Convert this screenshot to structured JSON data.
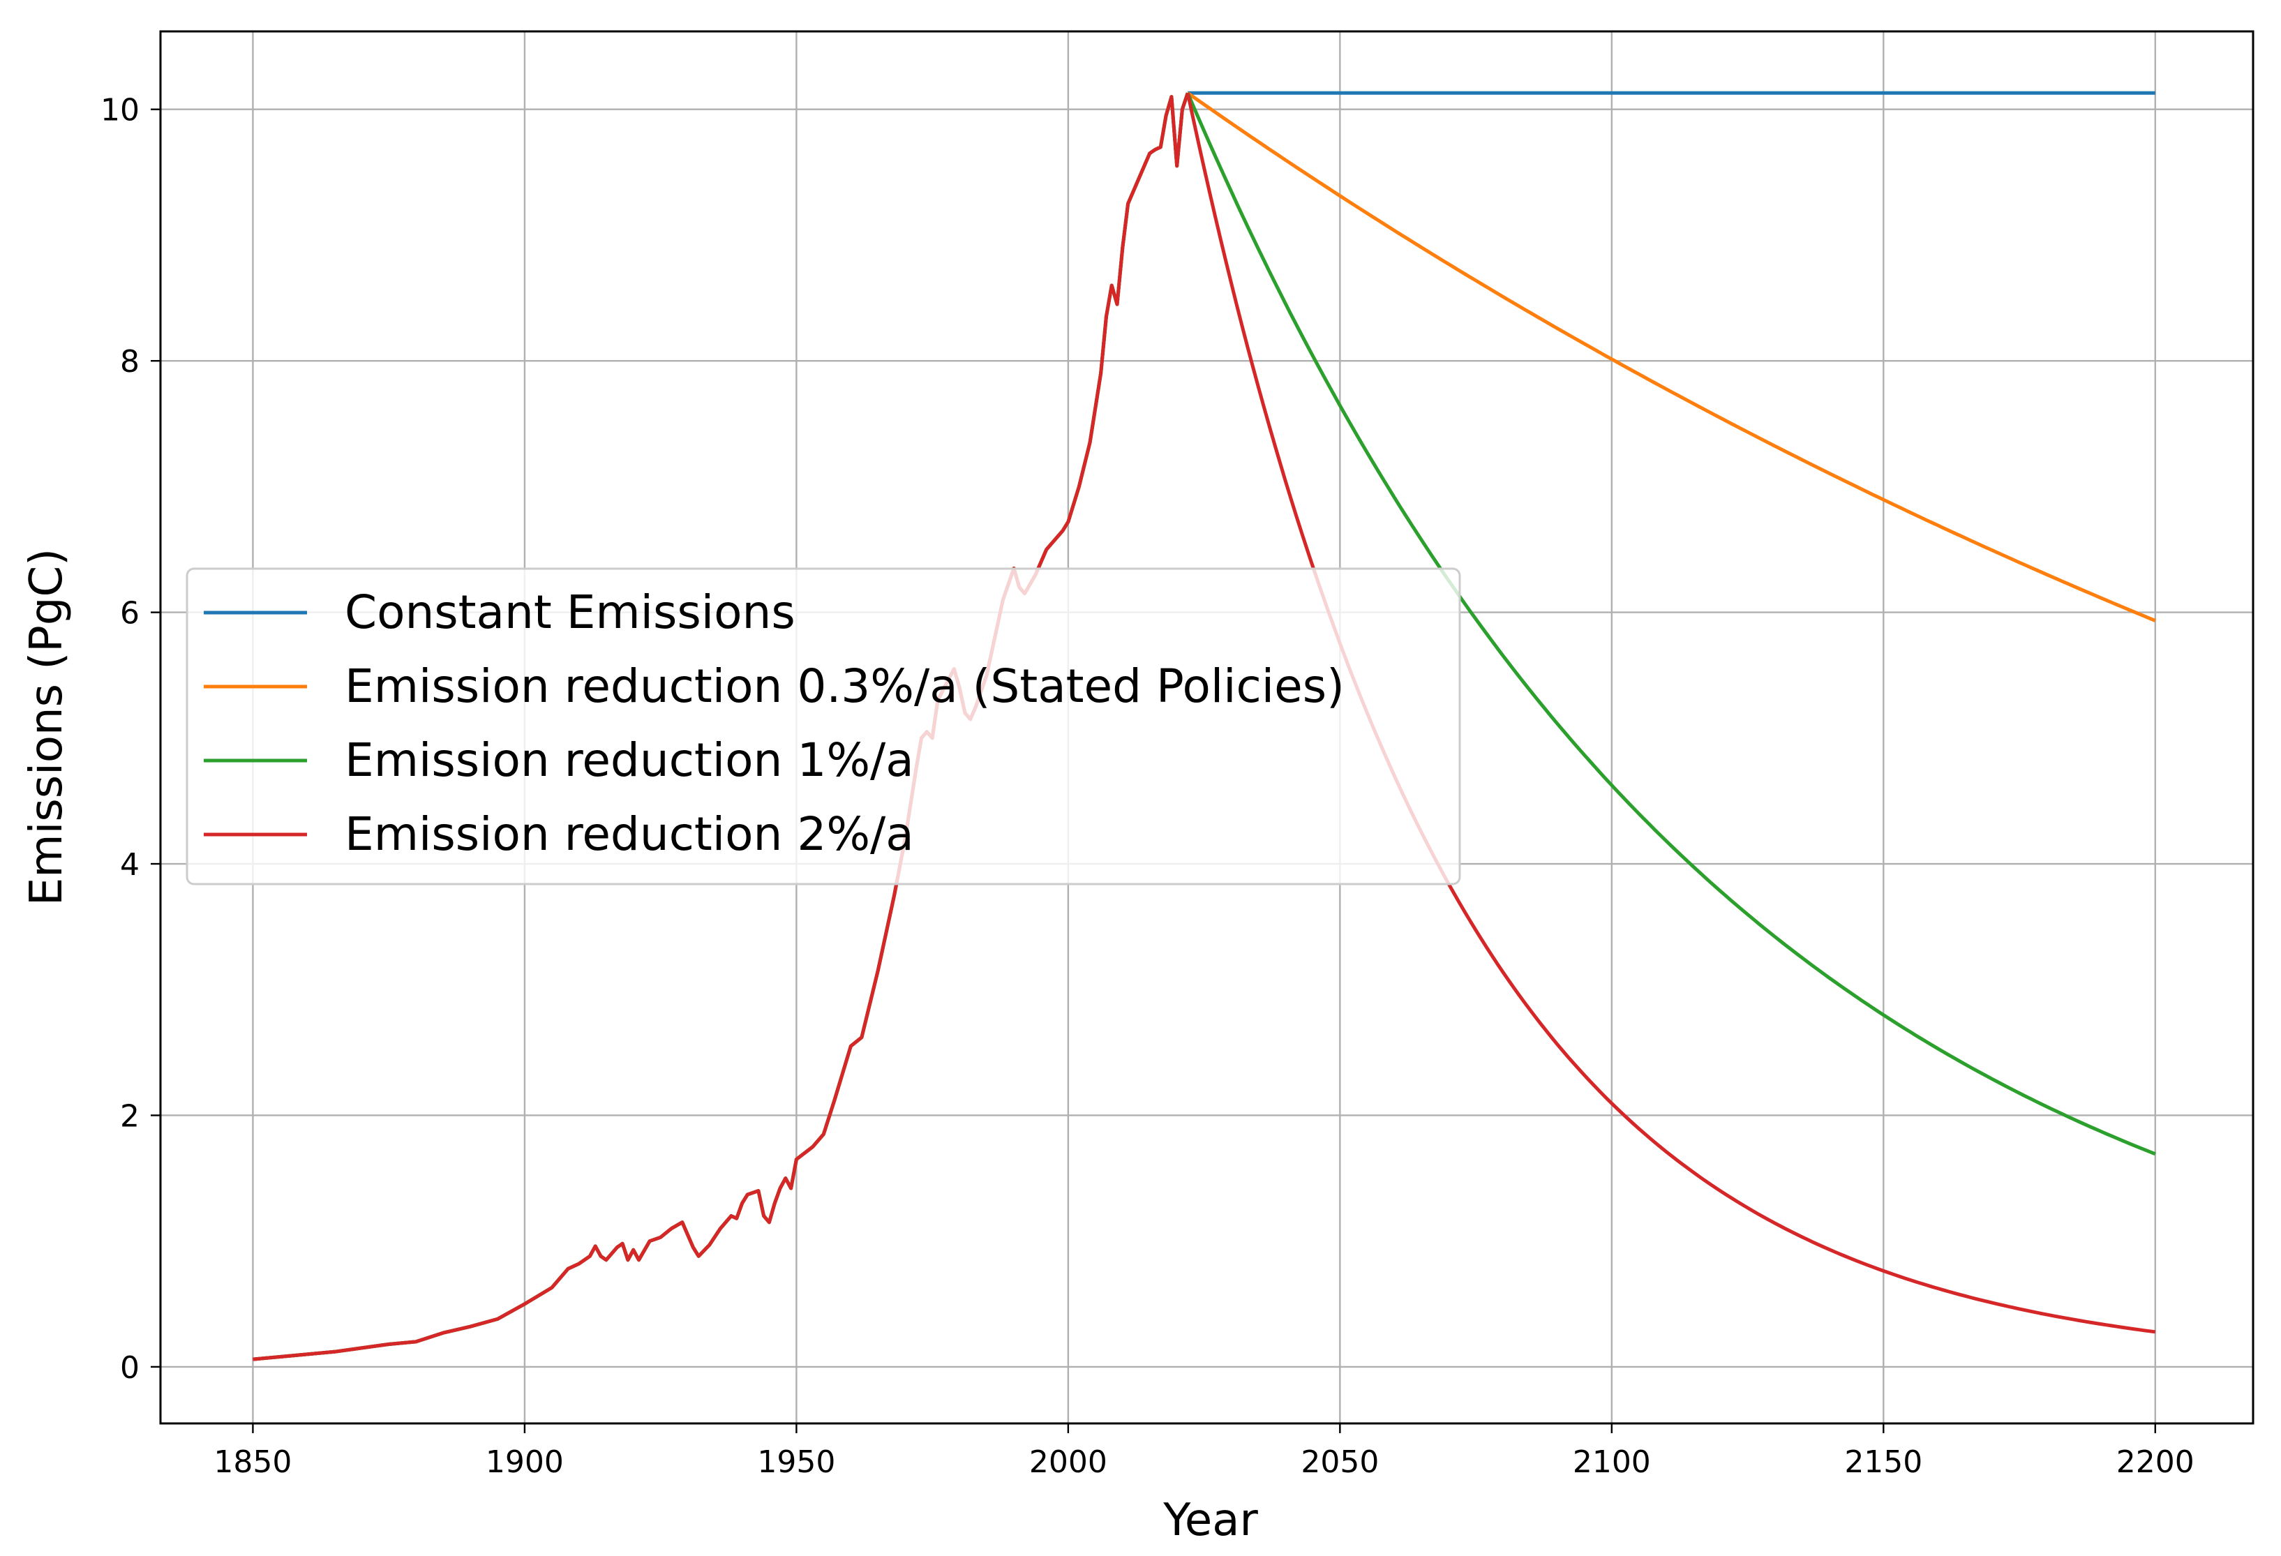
{
  "chart_data": {
    "type": "line",
    "xlabel": "Year",
    "ylabel": "Emissions (PgC)",
    "xlim": [
      1833,
      2218
    ],
    "ylim": [
      -0.45,
      10.62
    ],
    "xticks": [
      1850,
      1900,
      1950,
      2000,
      2050,
      2100,
      2150,
      2200
    ],
    "yticks": [
      0,
      2,
      4,
      6,
      8,
      10
    ],
    "grid": true,
    "legend_position": "center-left",
    "historical": {
      "x": [
        1850,
        1855,
        1860,
        1865,
        1870,
        1875,
        1880,
        1885,
        1890,
        1895,
        1900,
        1905,
        1908,
        1910,
        1912,
        1913,
        1914,
        1915,
        1917,
        1918,
        1919,
        1920,
        1921,
        1923,
        1925,
        1927,
        1929,
        1930,
        1931,
        1932,
        1934,
        1936,
        1938,
        1939,
        1940,
        1941,
        1943,
        1944,
        1945,
        1946,
        1947,
        1948,
        1949,
        1950,
        1953,
        1955,
        1957,
        1960,
        1962,
        1965,
        1968,
        1970,
        1972,
        1973,
        1974,
        1975,
        1976,
        1979,
        1980,
        1981,
        1982,
        1983,
        1985,
        1987,
        1988,
        1990,
        1991,
        1992,
        1994,
        1996,
        1998,
        1999,
        2000,
        2002,
        2004,
        2006,
        2007,
        2008,
        2009,
        2010,
        2011,
        2013,
        2015,
        2016,
        2017,
        2018,
        2019,
        2020,
        2021,
        2022
      ],
      "y": [
        0.06,
        0.08,
        0.1,
        0.12,
        0.15,
        0.18,
        0.2,
        0.27,
        0.32,
        0.38,
        0.5,
        0.63,
        0.78,
        0.82,
        0.88,
        0.96,
        0.88,
        0.85,
        0.95,
        0.98,
        0.85,
        0.93,
        0.85,
        1.0,
        1.03,
        1.1,
        1.15,
        1.05,
        0.95,
        0.88,
        0.97,
        1.1,
        1.2,
        1.18,
        1.3,
        1.37,
        1.4,
        1.2,
        1.15,
        1.3,
        1.42,
        1.5,
        1.42,
        1.65,
        1.75,
        1.85,
        2.12,
        2.55,
        2.62,
        3.15,
        3.75,
        4.2,
        4.75,
        5.0,
        5.05,
        5.0,
        5.3,
        5.55,
        5.4,
        5.2,
        5.15,
        5.25,
        5.5,
        5.9,
        6.1,
        6.35,
        6.2,
        6.15,
        6.3,
        6.5,
        6.6,
        6.65,
        6.72,
        7.0,
        7.35,
        7.9,
        8.35,
        8.6,
        8.45,
        8.9,
        9.25,
        9.45,
        9.65,
        9.68,
        9.7,
        9.95,
        10.1,
        9.55,
        10.0,
        10.13
      ]
    },
    "series": [
      {
        "name": "Constant Emissions",
        "color": "#1f77b4",
        "annual_reduction": 0.0
      },
      {
        "name": "Emission reduction 0.3%/a (Stated Policies)",
        "color": "#ff7f0e",
        "annual_reduction": 0.003
      },
      {
        "name": "Emission reduction 1%/a",
        "color": "#2ca02c",
        "annual_reduction": 0.01
      },
      {
        "name": "Emission reduction 2%/a",
        "color": "#d62728",
        "annual_reduction": 0.02
      }
    ],
    "projection_start": 2022,
    "projection_end": 2200,
    "projection_start_value": 10.13,
    "projection_end_values": [
      10.13,
      5.94,
      1.7,
      0.28
    ]
  }
}
